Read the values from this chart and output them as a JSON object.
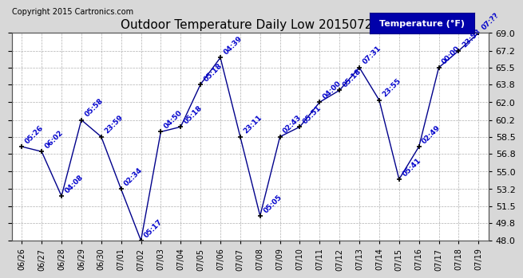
{
  "title": "Outdoor Temperature Daily Low 20150720",
  "copyright": "Copyright 2015 Cartronics.com",
  "legend_label": "Temperature (°F)",
  "bg_color": "#d8d8d8",
  "plot_bg": "#ffffff",
  "line_color": "#00008b",
  "marker_color": "#000000",
  "label_color": "#0000cc",
  "legend_bg": "#0000aa",
  "legend_text_color": "#ffffff",
  "ylim_min": 48.0,
  "ylim_max": 69.0,
  "ytick_values": [
    48.0,
    49.8,
    51.5,
    53.2,
    55.0,
    56.8,
    58.5,
    60.2,
    62.0,
    63.8,
    65.5,
    67.2,
    69.0
  ],
  "dates": [
    "06/26",
    "06/27",
    "06/28",
    "06/29",
    "06/30",
    "07/01",
    "07/02",
    "07/03",
    "07/04",
    "07/05",
    "07/06",
    "07/07",
    "07/08",
    "07/09",
    "07/10",
    "07/11",
    "07/12",
    "07/13",
    "07/14",
    "07/15",
    "07/16",
    "07/17",
    "07/18",
    "07/19"
  ],
  "values": [
    57.5,
    57.0,
    52.5,
    60.2,
    58.5,
    53.2,
    48.0,
    59.0,
    59.5,
    63.8,
    66.5,
    58.5,
    50.5,
    58.5,
    59.5,
    62.0,
    63.2,
    65.5,
    62.2,
    54.2,
    57.5,
    65.5,
    67.2,
    69.0
  ],
  "point_labels": [
    "05:26",
    "06:02",
    "04:08",
    "05:58",
    "23:59",
    "02:34",
    "05:17",
    "04:50",
    "05:18",
    "05:18",
    "04:39",
    "23:11",
    "05:05",
    "02:43",
    "05:51",
    "04:00",
    "05:18",
    "07:31",
    "23:55",
    "05:41",
    "02:49",
    "00:00",
    "23:58",
    "07:??"
  ],
  "title_fontsize": 11,
  "label_fontsize": 6.5,
  "tick_fontsize": 7,
  "ytick_fontsize": 8
}
